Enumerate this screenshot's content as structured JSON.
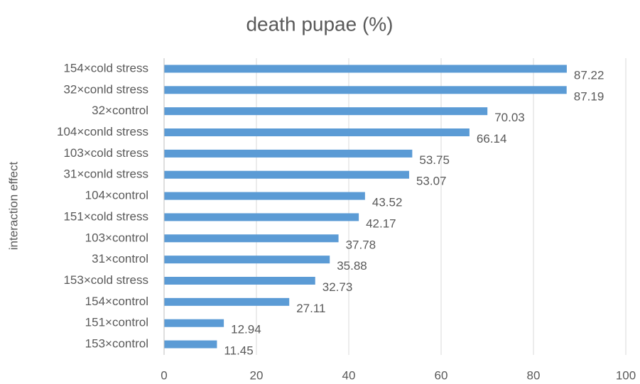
{
  "chart_data": {
    "type": "bar",
    "orientation": "horizontal",
    "title": "death pupae (%)",
    "y_label": "interaction effect",
    "categories": [
      "154×cold stress",
      "32×conld stress",
      "32×control",
      "104×conld stress",
      "103×cold stress",
      "31×conld stress",
      "104×control",
      "151×cold stress",
      "103×control",
      "31×control",
      "153×cold stress",
      "154×control",
      "151×control",
      "153×control"
    ],
    "values": [
      87.22,
      87.19,
      70.03,
      66.14,
      53.75,
      53.07,
      43.52,
      42.17,
      37.78,
      35.88,
      32.73,
      27.11,
      12.94,
      11.45
    ],
    "color": "#5b9bd5",
    "xlim": [
      0,
      100
    ],
    "xticks": [
      0,
      20,
      40,
      60,
      80,
      100
    ],
    "grid": true
  }
}
